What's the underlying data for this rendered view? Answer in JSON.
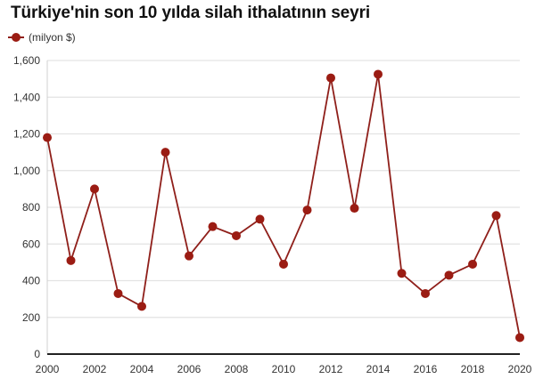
{
  "title": "Türkiye'nin son 10 yılda silah ithalatının seyri",
  "legend": {
    "label": "(milyon $)",
    "color": "#9b1c13"
  },
  "colors": {
    "line": "#8f1f1a",
    "marker": "#9b1c13",
    "grid": "#e3e3e3",
    "axis": "#222222"
  },
  "chart_data": {
    "type": "line",
    "title": "Türkiye'nin son 10 yılda silah ithalatının seyri",
    "xlabel": "",
    "ylabel": "",
    "legend": [
      "(milyon $)"
    ],
    "legend_position": "top-left",
    "grid": true,
    "ylim": [
      0,
      1600
    ],
    "xlim": [
      2000,
      2020
    ],
    "y_ticks": [
      0,
      200,
      400,
      600,
      800,
      1000,
      1200,
      1400,
      1600
    ],
    "y_tick_labels": [
      "0",
      "200",
      "400",
      "600",
      "800",
      "1,000",
      "1,200",
      "1,400",
      "1,600"
    ],
    "x_ticks": [
      2000,
      2002,
      2004,
      2006,
      2008,
      2010,
      2012,
      2014,
      2016,
      2018,
      2020
    ],
    "x_tick_labels": [
      "2000",
      "2002",
      "2004",
      "2006",
      "2008",
      "2010",
      "2012",
      "2014",
      "2016",
      "2018",
      "2020"
    ],
    "x": [
      2000,
      2001,
      2002,
      2003,
      2004,
      2005,
      2006,
      2007,
      2008,
      2009,
      2010,
      2011,
      2012,
      2013,
      2014,
      2015,
      2016,
      2017,
      2018,
      2019,
      2020
    ],
    "series": [
      {
        "name": "(milyon $)",
        "values": [
          1180,
          510,
          900,
          330,
          260,
          1100,
          535,
          695,
          645,
          735,
          490,
          785,
          1505,
          795,
          1525,
          440,
          330,
          430,
          490,
          755,
          90
        ]
      }
    ]
  }
}
